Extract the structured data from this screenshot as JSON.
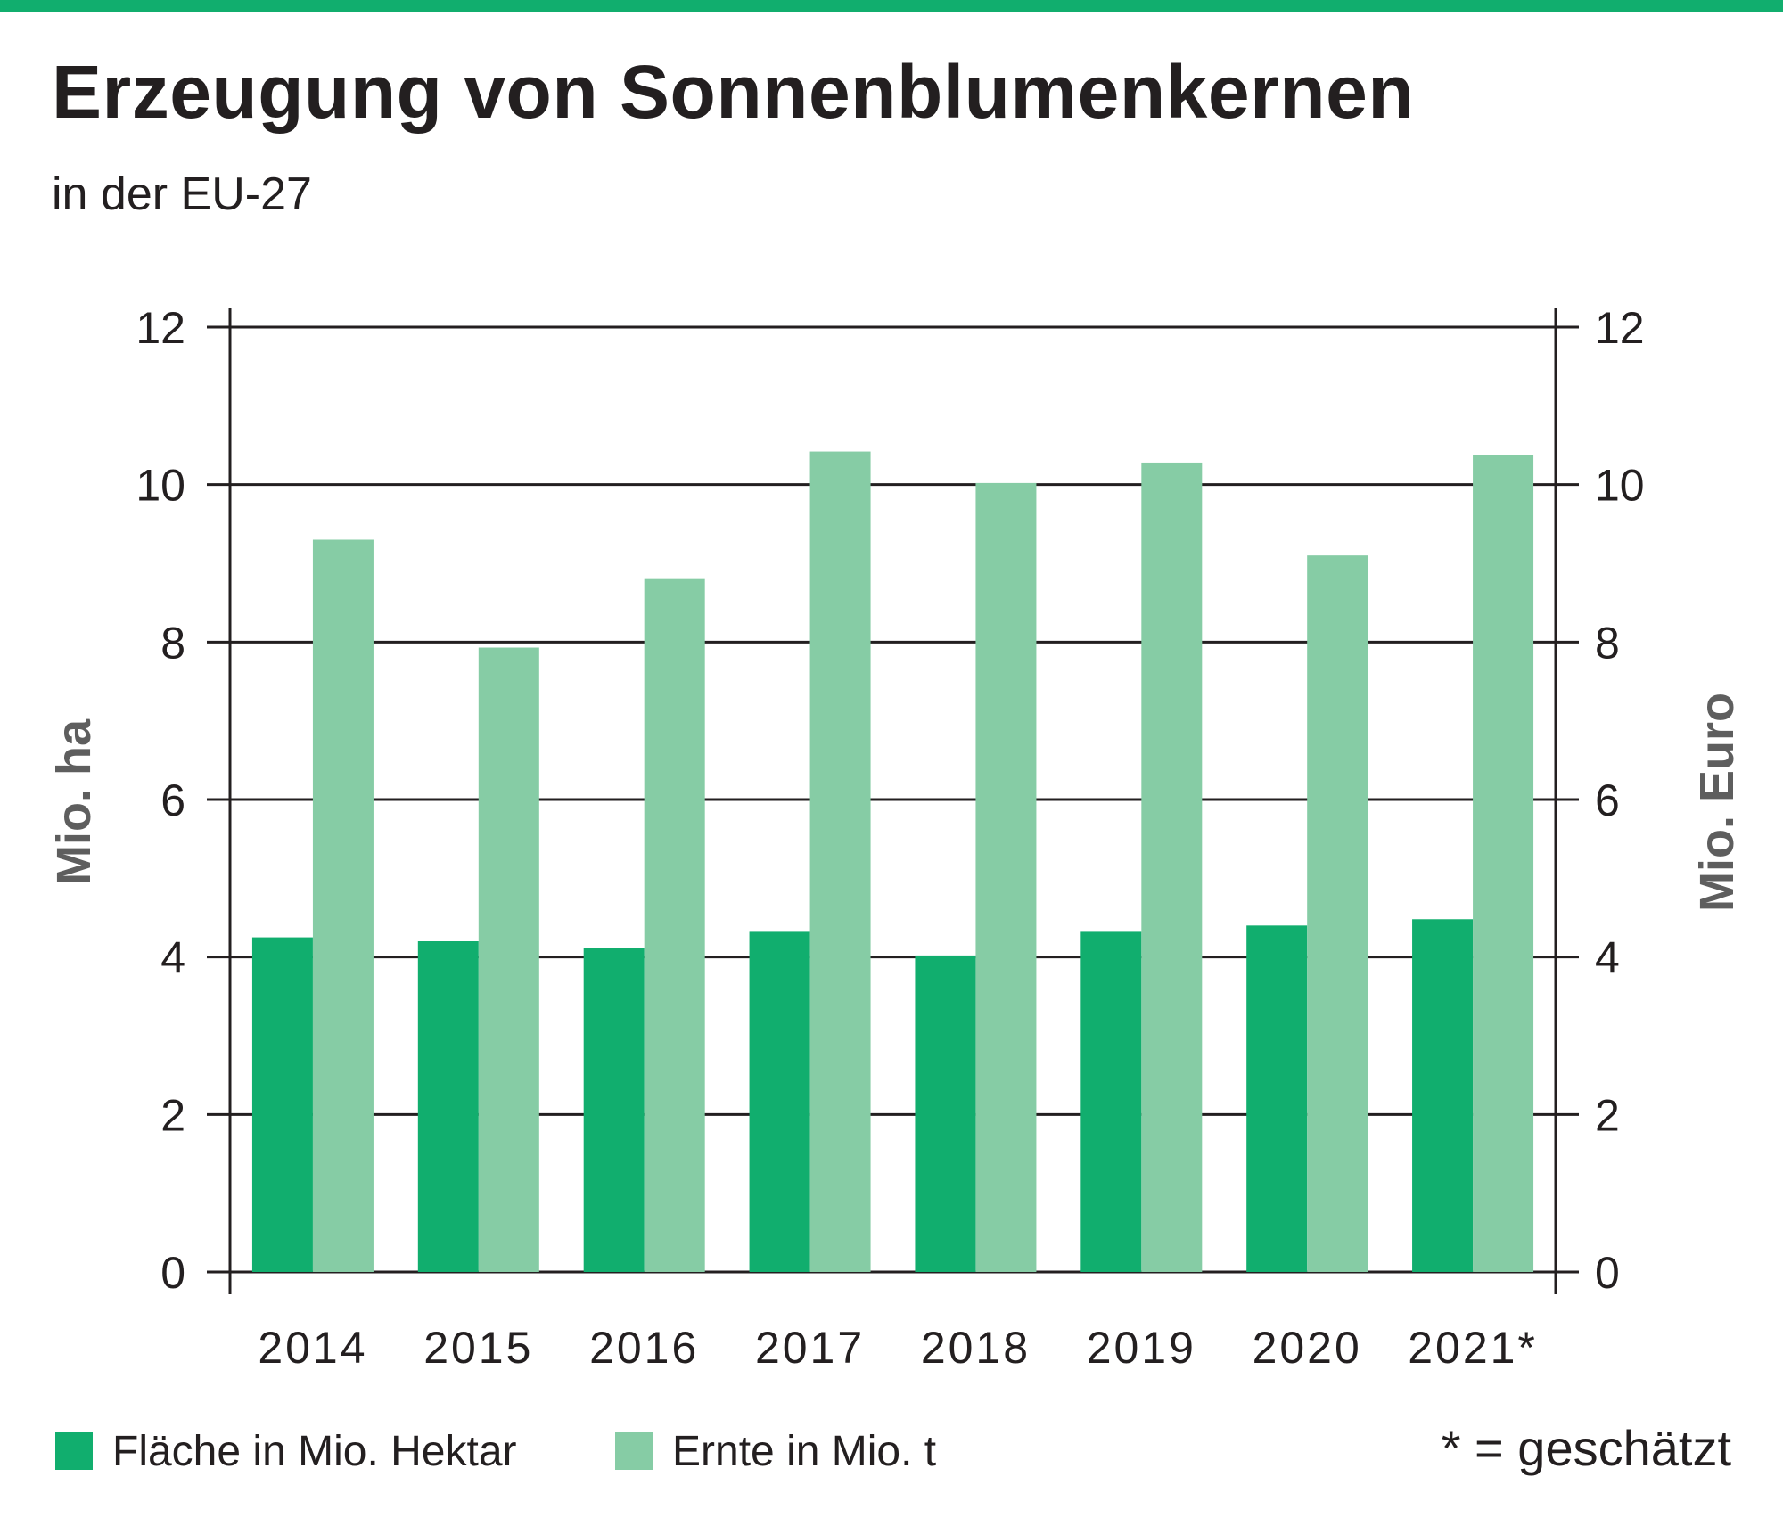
{
  "title": "Erzeugung von Sonnenblumenkernen",
  "subtitle": "in der EU-27",
  "footnote": "* = geschätzt",
  "colors": {
    "accent_bar": "#11ae6e",
    "flaeche": "#11ae6e",
    "ernte": "#86cca5",
    "axis": "#231f20",
    "axis_label": "#5e5e5e"
  },
  "legend": [
    {
      "label": "Fläche in Mio. Hektar",
      "color": "#11ae6e"
    },
    {
      "label": "Ernte in Mio. t",
      "color": "#86cca5"
    }
  ],
  "chart_data": {
    "type": "bar",
    "categories": [
      "2014",
      "2015",
      "2016",
      "2017",
      "2018",
      "2019",
      "2020",
      "2021*"
    ],
    "series": [
      {
        "name": "Fläche in Mio. Hektar",
        "values": [
          4.25,
          4.2,
          4.12,
          4.32,
          4.02,
          4.32,
          4.4,
          4.48
        ]
      },
      {
        "name": "Ernte in Mio. t",
        "values": [
          9.3,
          7.93,
          8.8,
          10.42,
          10.02,
          10.28,
          9.1,
          10.38
        ]
      }
    ],
    "ylabel": "Mio. ha",
    "y2label": "Mio. Euro",
    "ylim": [
      0,
      12
    ],
    "y2lim": [
      0,
      12
    ],
    "yticks": [
      "0",
      "2",
      "4",
      "6",
      "8",
      "10",
      "12"
    ],
    "y2ticks": [
      "0",
      "2",
      "4",
      "6",
      "8",
      "10",
      "12"
    ],
    "grid": true,
    "legend_position": "bottom-left"
  }
}
